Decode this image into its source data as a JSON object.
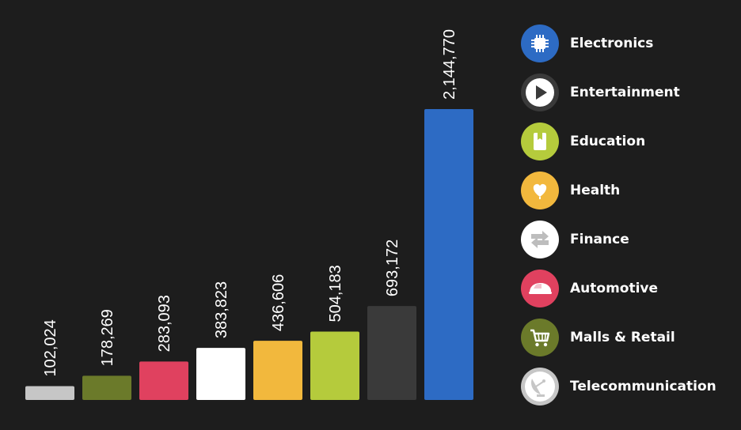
{
  "chart_data": {
    "type": "bar",
    "categories": [
      "Telecommunication",
      "Malls & Retail",
      "Automotive",
      "Finance",
      "Health",
      "Education",
      "Entertainment",
      "Electronics"
    ],
    "values": [
      102024,
      178269,
      283093,
      383823,
      436606,
      504183,
      693172,
      2144770
    ],
    "value_labels": [
      "102,024",
      "178,269",
      "283,093",
      "383,823",
      "436,606",
      "504,183",
      "693,172",
      "2,144,770"
    ],
    "colors": [
      "#c6c6c6",
      "#6b7a2a",
      "#e0415f",
      "#ffffff",
      "#f2b83d",
      "#b5cb3c",
      "#3a3a3a",
      "#2d6bc4"
    ],
    "title": "",
    "xlabel": "",
    "ylabel": "",
    "ylim": [
      0,
      2144770
    ],
    "grid": false,
    "legend_position": "right"
  },
  "legend": {
    "items": [
      {
        "label": "Electronics",
        "color": "#2d6bc4",
        "icon": "chip-icon"
      },
      {
        "label": "Entertainment",
        "color": "#3a3a3a",
        "icon": "play-icon"
      },
      {
        "label": "Education",
        "color": "#b5cb3c",
        "icon": "book-icon"
      },
      {
        "label": "Health",
        "color": "#f2b83d",
        "icon": "heart-icon"
      },
      {
        "label": "Finance",
        "color": "#ffffff",
        "icon": "exchange-arrows-icon"
      },
      {
        "label": "Automotive",
        "color": "#e0415f",
        "icon": "car-icon"
      },
      {
        "label": "Malls & Retail",
        "color": "#6b7a2a",
        "icon": "shopping-cart-icon"
      },
      {
        "label": "Telecommunication",
        "color": "#c6c6c6",
        "icon": "satellite-dish-icon"
      }
    ]
  }
}
